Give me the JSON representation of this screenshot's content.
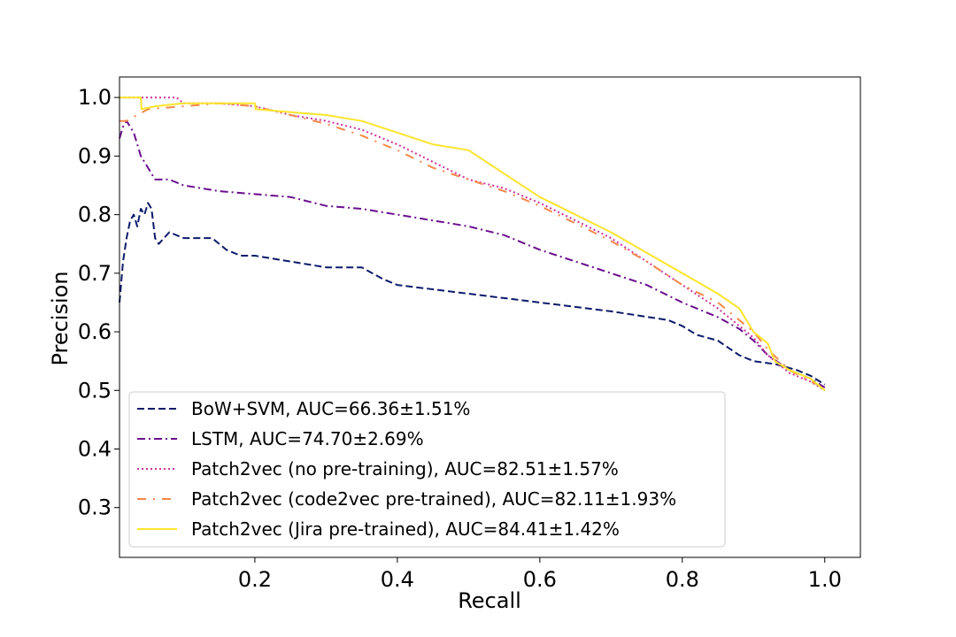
{
  "chart_data": {
    "type": "line",
    "title": "",
    "xlabel": "Recall",
    "ylabel": "Precision",
    "xlim": [
      0.01,
      1.05
    ],
    "ylim": [
      0.215,
      1.035
    ],
    "xticks": [
      0.2,
      0.4,
      0.6,
      0.8,
      1.0
    ],
    "xtick_labels": [
      "0.2",
      "0.4",
      "0.6",
      "0.8",
      "1.0"
    ],
    "yticks": [
      0.3,
      0.4,
      0.5,
      0.6,
      0.7,
      0.8,
      0.9,
      1.0
    ],
    "ytick_labels": [
      "0.3",
      "0.4",
      "0.5",
      "0.6",
      "0.7",
      "0.8",
      "0.9",
      "1.0"
    ],
    "grid": false,
    "legend_position": "lower-left",
    "series": [
      {
        "name": "BoW+SVM, AUC=66.36±1.51%",
        "color": "#0d1a6b",
        "dash": "dashed",
        "points": [
          [
            0.01,
            0.65
          ],
          [
            0.015,
            0.72
          ],
          [
            0.02,
            0.76
          ],
          [
            0.025,
            0.79
          ],
          [
            0.03,
            0.8
          ],
          [
            0.035,
            0.78
          ],
          [
            0.04,
            0.81
          ],
          [
            0.045,
            0.8
          ],
          [
            0.05,
            0.82
          ],
          [
            0.055,
            0.81
          ],
          [
            0.06,
            0.76
          ],
          [
            0.065,
            0.75
          ],
          [
            0.08,
            0.77
          ],
          [
            0.1,
            0.76
          ],
          [
            0.12,
            0.76
          ],
          [
            0.14,
            0.76
          ],
          [
            0.16,
            0.74
          ],
          [
            0.18,
            0.73
          ],
          [
            0.2,
            0.73
          ],
          [
            0.25,
            0.72
          ],
          [
            0.3,
            0.71
          ],
          [
            0.35,
            0.71
          ],
          [
            0.38,
            0.69
          ],
          [
            0.4,
            0.68
          ],
          [
            0.5,
            0.665
          ],
          [
            0.6,
            0.65
          ],
          [
            0.7,
            0.635
          ],
          [
            0.78,
            0.62
          ],
          [
            0.8,
            0.61
          ],
          [
            0.82,
            0.595
          ],
          [
            0.85,
            0.585
          ],
          [
            0.88,
            0.56
          ],
          [
            0.9,
            0.55
          ],
          [
            0.93,
            0.545
          ],
          [
            0.96,
            0.535
          ],
          [
            0.98,
            0.525
          ],
          [
            1.0,
            0.51
          ]
        ]
      },
      {
        "name": "LSTM, AUC=74.70±2.69%",
        "color": "#6a0f8e",
        "dash": "dashdot",
        "points": [
          [
            0.01,
            0.93
          ],
          [
            0.015,
            0.95
          ],
          [
            0.02,
            0.96
          ],
          [
            0.03,
            0.94
          ],
          [
            0.04,
            0.9
          ],
          [
            0.05,
            0.88
          ],
          [
            0.06,
            0.86
          ],
          [
            0.08,
            0.86
          ],
          [
            0.1,
            0.85
          ],
          [
            0.15,
            0.84
          ],
          [
            0.2,
            0.835
          ],
          [
            0.25,
            0.83
          ],
          [
            0.3,
            0.815
          ],
          [
            0.35,
            0.81
          ],
          [
            0.4,
            0.8
          ],
          [
            0.45,
            0.79
          ],
          [
            0.5,
            0.78
          ],
          [
            0.55,
            0.765
          ],
          [
            0.6,
            0.74
          ],
          [
            0.65,
            0.72
          ],
          [
            0.7,
            0.7
          ],
          [
            0.75,
            0.68
          ],
          [
            0.8,
            0.65
          ],
          [
            0.85,
            0.625
          ],
          [
            0.88,
            0.605
          ],
          [
            0.9,
            0.585
          ],
          [
            0.92,
            0.56
          ],
          [
            0.95,
            0.535
          ],
          [
            0.98,
            0.52
          ],
          [
            1.0,
            0.505
          ]
        ]
      },
      {
        "name": "Patch2vec (no pre-training), AUC=82.51±1.57%",
        "color": "#cc3399",
        "dash": "dotted",
        "points": [
          [
            0.01,
            1.0
          ],
          [
            0.05,
            1.0
          ],
          [
            0.09,
            1.0
          ],
          [
            0.1,
            0.99
          ],
          [
            0.15,
            0.99
          ],
          [
            0.2,
            0.985
          ],
          [
            0.25,
            0.97
          ],
          [
            0.3,
            0.96
          ],
          [
            0.35,
            0.945
          ],
          [
            0.4,
            0.92
          ],
          [
            0.45,
            0.89
          ],
          [
            0.5,
            0.86
          ],
          [
            0.55,
            0.845
          ],
          [
            0.6,
            0.82
          ],
          [
            0.65,
            0.79
          ],
          [
            0.7,
            0.76
          ],
          [
            0.75,
            0.72
          ],
          [
            0.8,
            0.68
          ],
          [
            0.85,
            0.64
          ],
          [
            0.88,
            0.61
          ],
          [
            0.9,
            0.59
          ],
          [
            0.92,
            0.56
          ],
          [
            0.95,
            0.53
          ],
          [
            0.98,
            0.515
          ],
          [
            1.0,
            0.5
          ]
        ]
      },
      {
        "name": "Patch2vec (code2vec pre-trained), AUC=82.11±1.93%",
        "color": "#f4884a",
        "dash": "loosedashdot",
        "points": [
          [
            0.01,
            0.96
          ],
          [
            0.02,
            0.96
          ],
          [
            0.05,
            0.98
          ],
          [
            0.1,
            0.985
          ],
          [
            0.15,
            0.99
          ],
          [
            0.2,
            0.985
          ],
          [
            0.25,
            0.97
          ],
          [
            0.3,
            0.955
          ],
          [
            0.35,
            0.935
          ],
          [
            0.4,
            0.91
          ],
          [
            0.45,
            0.88
          ],
          [
            0.5,
            0.86
          ],
          [
            0.55,
            0.84
          ],
          [
            0.6,
            0.815
          ],
          [
            0.65,
            0.785
          ],
          [
            0.7,
            0.755
          ],
          [
            0.75,
            0.72
          ],
          [
            0.8,
            0.68
          ],
          [
            0.85,
            0.65
          ],
          [
            0.88,
            0.62
          ],
          [
            0.9,
            0.6
          ],
          [
            0.92,
            0.57
          ],
          [
            0.95,
            0.535
          ],
          [
            0.98,
            0.515
          ],
          [
            1.0,
            0.505
          ]
        ]
      },
      {
        "name": "Patch2vec (Jira pre-trained), AUC=84.41±1.42%",
        "color": "#fbe52b",
        "dash": "solid",
        "points": [
          [
            0.01,
            1.0
          ],
          [
            0.04,
            1.0
          ],
          [
            0.041,
            0.98
          ],
          [
            0.06,
            0.985
          ],
          [
            0.1,
            0.99
          ],
          [
            0.15,
            0.99
          ],
          [
            0.2,
            0.99
          ],
          [
            0.201,
            0.98
          ],
          [
            0.25,
            0.975
          ],
          [
            0.3,
            0.97
          ],
          [
            0.35,
            0.96
          ],
          [
            0.4,
            0.94
          ],
          [
            0.45,
            0.92
          ],
          [
            0.5,
            0.91
          ],
          [
            0.55,
            0.87
          ],
          [
            0.6,
            0.83
          ],
          [
            0.65,
            0.8
          ],
          [
            0.7,
            0.77
          ],
          [
            0.75,
            0.735
          ],
          [
            0.8,
            0.7
          ],
          [
            0.85,
            0.665
          ],
          [
            0.88,
            0.64
          ],
          [
            0.9,
            0.6
          ],
          [
            0.92,
            0.58
          ],
          [
            0.93,
            0.55
          ],
          [
            0.95,
            0.535
          ],
          [
            0.98,
            0.52
          ],
          [
            1.0,
            0.5
          ]
        ]
      }
    ]
  }
}
